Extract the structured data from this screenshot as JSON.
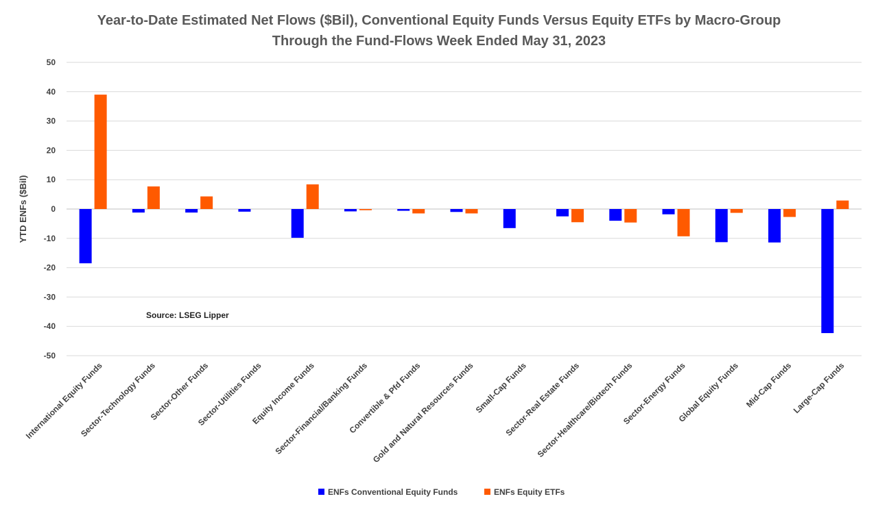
{
  "chart_data": {
    "type": "bar",
    "title": "Year-to-Date Estimated Net Flows ($Bil), Conventional Equity Funds Versus Equity ETFs by Macro-Group",
    "subtitle": "Through the Fund-Flows Week Ended May 31, 2023",
    "xlabel": "",
    "ylabel": "YTD ENFs ($Bil)",
    "ylim": [
      -50,
      50
    ],
    "yticks": [
      50,
      40,
      30,
      20,
      10,
      0,
      -10,
      -20,
      -30,
      -40,
      -50
    ],
    "grid": true,
    "legend_position": "bottom",
    "annotation": "Source: LSEG Lipper",
    "categories": [
      "International Equity Funds",
      "Sector-Technology Funds",
      "Sector-Other Funds",
      "Sector-Utilities Funds",
      "Equity Income Funds",
      "Sector-Financial/Banking Funds",
      "Convertible & Pfd Funds",
      "Gold and Natural Resources Funds",
      "Small-Cap Funds",
      "Sector-Real Estate Funds",
      "Sector-Healthcare/Biotech Funds",
      "Sector-Energy Funds",
      "Global Equity Funds",
      "Mid-Cap Funds",
      "Large-Cap Funds"
    ],
    "series": [
      {
        "name": "ENFs Conventional Equity Funds",
        "color": "#0000ff",
        "values": [
          -18.5,
          -1.2,
          -1.2,
          -0.9,
          -9.8,
          -0.8,
          -0.6,
          -1.0,
          -6.5,
          -2.5,
          -4.0,
          -1.8,
          -11.3,
          -11.4,
          -42.3
        ]
      },
      {
        "name": "ENFs Equity ETFs",
        "color": "#ff5a00",
        "values": [
          39.0,
          7.7,
          4.3,
          0.0,
          8.4,
          -0.4,
          -1.5,
          -1.5,
          0.0,
          -4.5,
          -4.6,
          -9.3,
          -1.3,
          -2.7,
          2.9
        ]
      }
    ]
  }
}
